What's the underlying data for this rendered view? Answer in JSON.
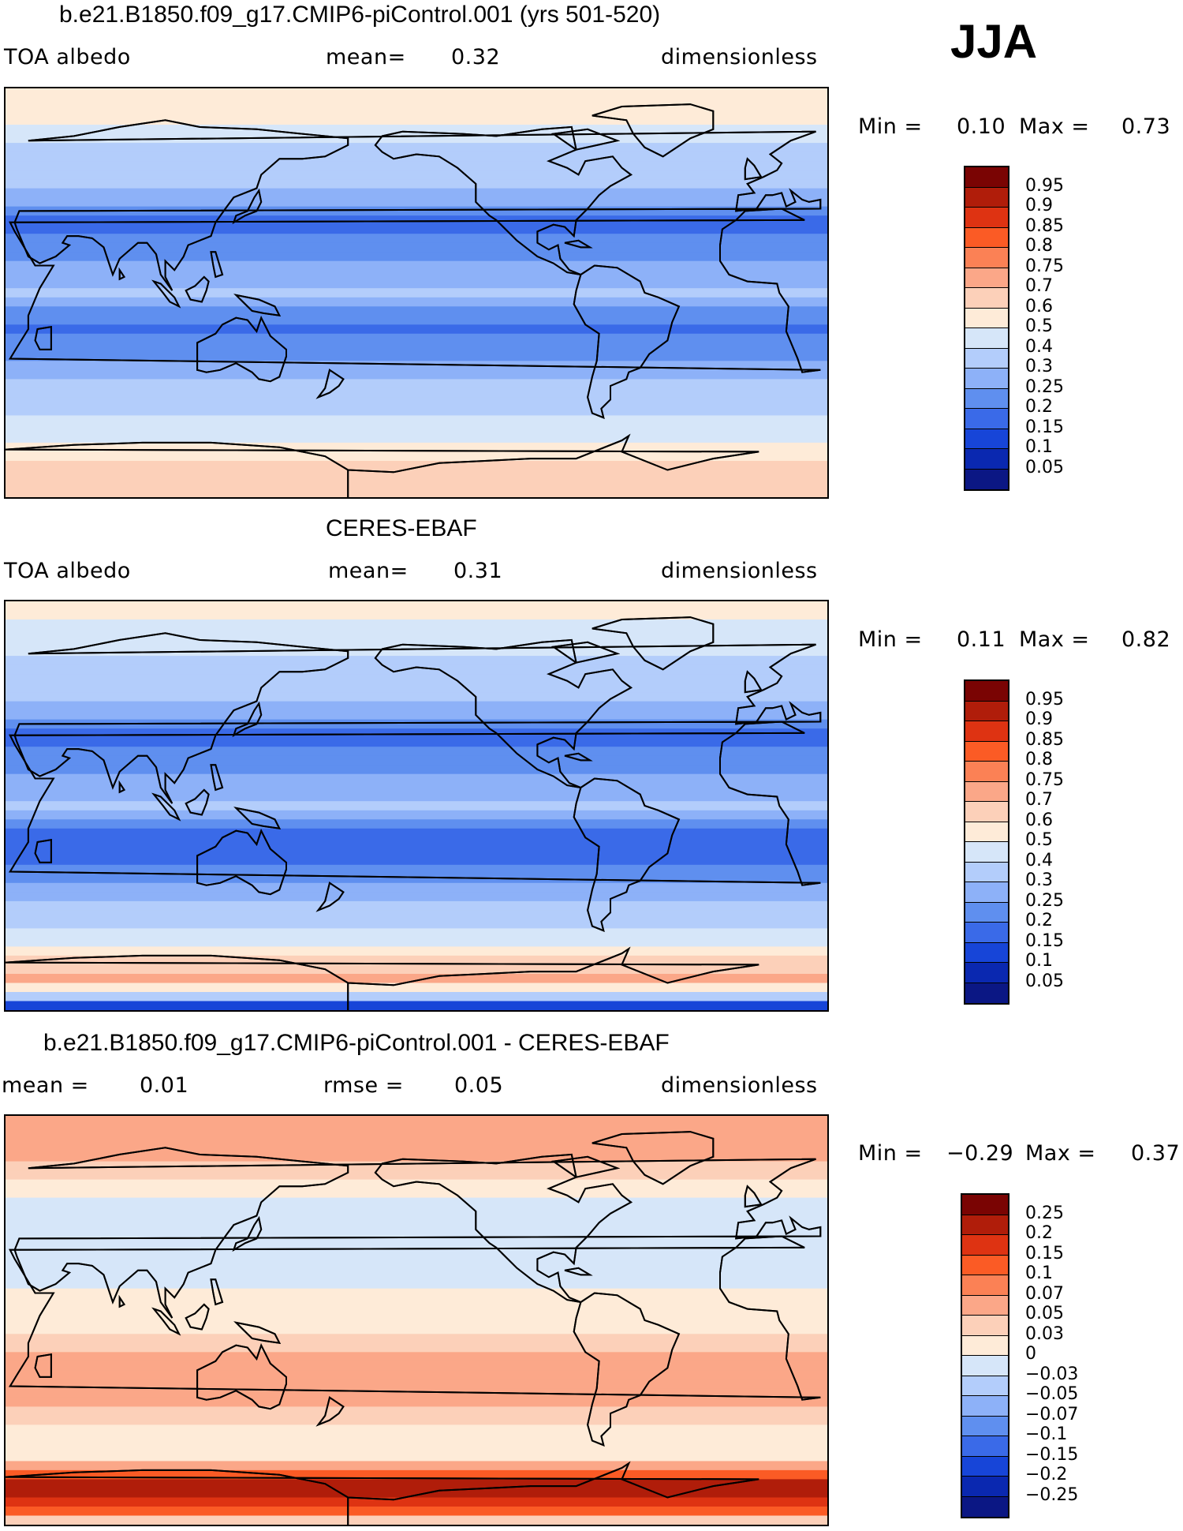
{
  "season": "JJA",
  "panels": [
    {
      "title": "b.e21.B1850.f09_g17.CMIP6-piControl.001 (yrs 501-520)",
      "left_label": "TOA  albedo",
      "mid_label": "mean=",
      "mid_value": "0.32",
      "right_label": "dimensionless",
      "min_label": "Min  =",
      "min_value": "0.10",
      "max_label": "Max  =",
      "max_value": "0.73",
      "colors": [
        "#7a0403",
        "#b01d0a",
        "#de3312",
        "#fb5b25",
        "#fb8155",
        "#fba788",
        "#fcd0b9",
        "#feebd8",
        "#d6e6f9",
        "#b3cdfb",
        "#8db1f8",
        "#5f8fef",
        "#3a6ae8",
        "#1745d8",
        "#0a28b0",
        "#0b1784"
      ],
      "scale": [
        "0.95",
        "0.9",
        "0.85",
        "0.8",
        "0.75",
        "0.7",
        "0.6",
        "0.5",
        "0.4",
        "0.3",
        "0.25",
        "0.2",
        "0.15",
        "0.1",
        "0.05"
      ]
    },
    {
      "title": "CERES-EBAF",
      "left_label": "TOA  albedo",
      "mid_label": "mean=",
      "mid_value": "0.31",
      "right_label": "dimensionless",
      "min_label": "Min  =",
      "min_value": "0.11",
      "max_label": "Max  =",
      "max_value": "0.82",
      "colors": [
        "#7a0403",
        "#b01d0a",
        "#de3312",
        "#fb5b25",
        "#fb8155",
        "#fba788",
        "#fcd0b9",
        "#feebd8",
        "#d6e6f9",
        "#b3cdfb",
        "#8db1f8",
        "#5f8fef",
        "#3a6ae8",
        "#1745d8",
        "#0a28b0",
        "#0b1784"
      ],
      "scale": [
        "0.95",
        "0.9",
        "0.85",
        "0.8",
        "0.75",
        "0.7",
        "0.6",
        "0.5",
        "0.4",
        "0.3",
        "0.25",
        "0.2",
        "0.15",
        "0.1",
        "0.05"
      ]
    },
    {
      "title": "b.e21.B1850.f09_g17.CMIP6-piControl.001 - CERES-EBAF",
      "left_label": "mean  =",
      "left_value": "0.01",
      "mid_label": "rmse  =",
      "mid_value": "0.05",
      "right_label": "dimensionless",
      "min_label": "Min  =",
      "min_value": "−0.29",
      "max_label": "Max  =",
      "max_value": "0.37",
      "colors": [
        "#7a0403",
        "#b01d0a",
        "#de3312",
        "#fb5b25",
        "#fb8155",
        "#fba788",
        "#fcd0b9",
        "#feebd8",
        "#d6e6f9",
        "#b3cdfb",
        "#8db1f8",
        "#5f8fef",
        "#3a6ae8",
        "#1745d8",
        "#0a28b0",
        "#0b1784"
      ],
      "scale": [
        "0.25",
        "0.2",
        "0.15",
        "0.1",
        "0.07",
        "0.05",
        "0.03",
        "0",
        "−0.03",
        "−0.05",
        "−0.07",
        "−0.1",
        "−0.15",
        "−0.2",
        "−0.25"
      ]
    }
  ],
  "chart_data": [
    {
      "type": "heatmap",
      "title": "b.e21.B1850.f09_g17.CMIP6-piControl.001 (yrs 501-520)",
      "variable": "TOA  albedo",
      "units": "dimensionless",
      "season": "JJA",
      "mean": 0.32,
      "min": 0.1,
      "max": 0.73,
      "levels": [
        0.05,
        0.1,
        0.15,
        0.2,
        0.25,
        0.3,
        0.4,
        0.5,
        0.6,
        0.7,
        0.75,
        0.8,
        0.85,
        0.9,
        0.95
      ],
      "zonal_profile": {
        "lat": [
          90,
          75,
          60,
          45,
          30,
          15,
          0,
          -15,
          -30,
          -45,
          -60,
          -75,
          -90
        ],
        "value": [
          0.6,
          0.5,
          0.35,
          0.3,
          0.18,
          0.25,
          0.3,
          0.18,
          0.25,
          0.33,
          0.45,
          0.6,
          0.7
        ]
      }
    },
    {
      "type": "heatmap",
      "title": "CERES-EBAF",
      "variable": "TOA  albedo",
      "units": "dimensionless",
      "season": "JJA",
      "mean": 0.31,
      "min": 0.11,
      "max": 0.82,
      "levels": [
        0.05,
        0.1,
        0.15,
        0.2,
        0.25,
        0.3,
        0.4,
        0.5,
        0.6,
        0.7,
        0.75,
        0.8,
        0.85,
        0.9,
        0.95
      ],
      "zonal_profile": {
        "lat": [
          90,
          75,
          60,
          45,
          30,
          15,
          0,
          -15,
          -30,
          -45,
          -60,
          -75,
          -90
        ],
        "value": [
          0.55,
          0.45,
          0.35,
          0.3,
          0.18,
          0.25,
          0.3,
          0.15,
          0.22,
          0.32,
          0.45,
          0.75,
          0.05
        ]
      }
    },
    {
      "type": "heatmap",
      "title": "b.e21.B1850.f09_g17.CMIP6-piControl.001 - CERES-EBAF",
      "units": "dimensionless",
      "season": "JJA",
      "mean": 0.01,
      "rmse": 0.05,
      "min": -0.29,
      "max": 0.37,
      "levels": [
        -0.25,
        -0.2,
        -0.15,
        -0.1,
        -0.07,
        -0.05,
        -0.03,
        0,
        0.03,
        0.05,
        0.07,
        0.1,
        0.15,
        0.2,
        0.25
      ],
      "zonal_profile": {
        "lat": [
          90,
          75,
          60,
          45,
          30,
          15,
          0,
          -15,
          -30,
          -45,
          -60,
          -75,
          -90
        ],
        "value": [
          0.05,
          0.07,
          0.02,
          -0.03,
          -0.02,
          0.0,
          0.02,
          0.05,
          0.07,
          0.03,
          0.0,
          0.25,
          0.0
        ]
      }
    }
  ]
}
